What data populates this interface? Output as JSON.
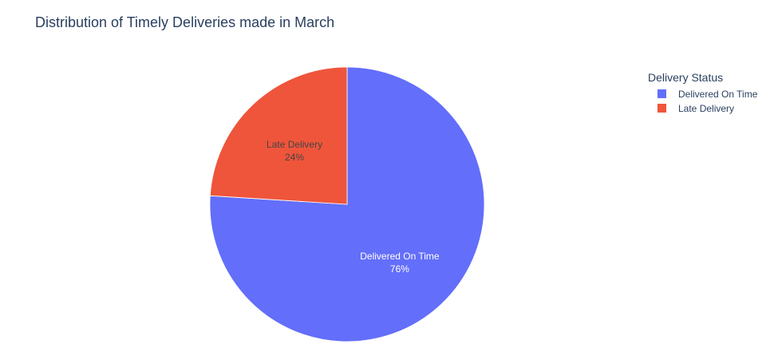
{
  "chart_data": {
    "type": "pie",
    "title": "Distribution of Timely Deliveries made in March",
    "legend": {
      "title": "Delivery Status",
      "placement": "top-right"
    },
    "slices": [
      {
        "label": "Delivered On Time",
        "value": 76,
        "display_percent": "76%",
        "color": "#636efa",
        "text_color": "#ffffff"
      },
      {
        "label": "Late Delivery",
        "value": 24,
        "display_percent": "24%",
        "color": "#ef553b",
        "text_color": "#444444"
      }
    ]
  }
}
